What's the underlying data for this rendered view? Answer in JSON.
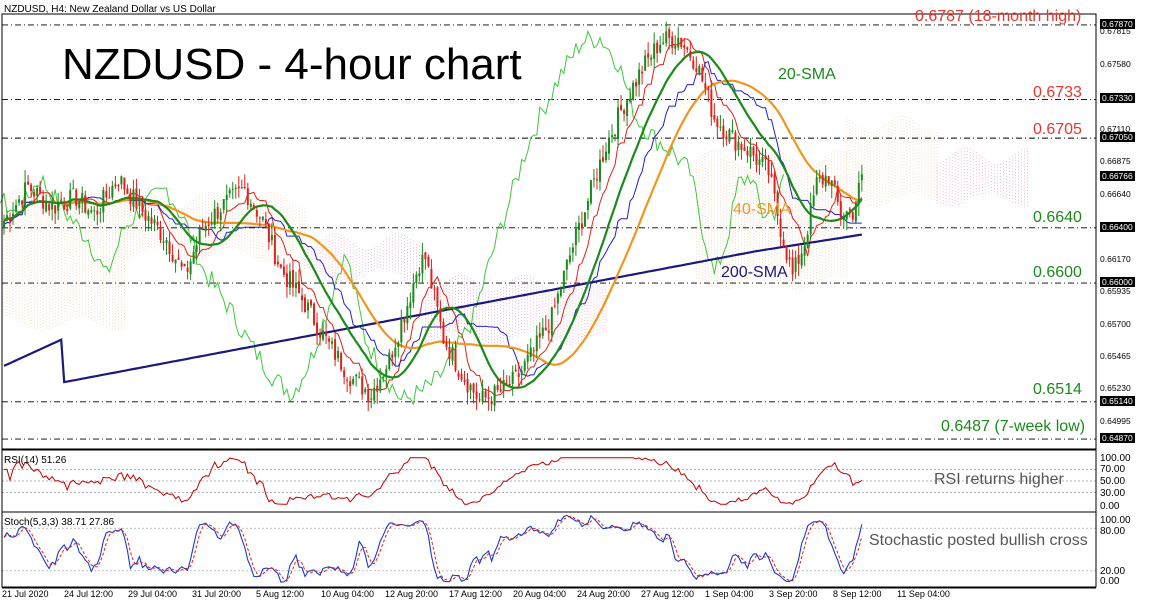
{
  "header": {
    "symbol_line": "NZDUSD, H4: New Zealand Dollar vs US Dollar",
    "title": "NZDUSD - 4-hour chart"
  },
  "colors": {
    "bull_candle": "#1a8a1a",
    "bear_candle": "#e0201a",
    "sma20": "#1a8a1a",
    "sma40": "#f0961e",
    "sma200": "#1a1a7a",
    "tenkan": "#e0201a",
    "kijun": "#2020c8",
    "chikou": "#3cc83c",
    "cloud_bull": "#f5c9a0",
    "cloud_bear": "#e898c8",
    "level_text_red": "#e8362c",
    "level_text_green": "#1b8a1b"
  },
  "levels": [
    {
      "value": 0.6787,
      "label": "0.6787 (18-month high)",
      "color": "red"
    },
    {
      "value": 0.6733,
      "label": "0.6733",
      "color": "red"
    },
    {
      "value": 0.6705,
      "label": "0.6705",
      "color": "red"
    },
    {
      "value": 0.664,
      "label": "0.6640",
      "color": "green"
    },
    {
      "value": 0.66,
      "label": "0.6600",
      "color": "green"
    },
    {
      "value": 0.6514,
      "label": "0.6514",
      "color": "green"
    },
    {
      "value": 0.6487,
      "label": "0.6487 (7-week low)",
      "color": "green"
    }
  ],
  "sma_labels": {
    "sma20": "20-SMA",
    "sma40": "40-SMA",
    "sma200": "200-SMA"
  },
  "price_axis": {
    "ticks": [
      "0.67870",
      "0.67815",
      "0.67580",
      "0.67330",
      "0.67110",
      "0.67050",
      "0.66875",
      "0.66766",
      "0.66640",
      "0.66400",
      "0.66170",
      "0.66000",
      "0.65935",
      "0.65700",
      "0.65465",
      "0.65230",
      "0.65140",
      "0.64995",
      "0.64870"
    ],
    "highlighted": [
      "0.67870",
      "0.67330",
      "0.67050",
      "0.66766",
      "0.66400",
      "0.66000",
      "0.65140",
      "0.64870"
    ]
  },
  "rsi": {
    "label": "RSI(14) 51.26",
    "ticks": [
      "100.00",
      "70.00",
      "50.00",
      "30.00",
      "0.00"
    ],
    "note": "RSI returns higher"
  },
  "stoch": {
    "label": "Stoch(5,3,3) 38.71 27.86",
    "ticks": [
      "100.00",
      "80.00",
      "20.00",
      "0.00"
    ],
    "note": "Stochastic posted bullish cross"
  },
  "x_axis": [
    "21 Jul 2020",
    "24 Jul 12:00",
    "29 Jul 04:00",
    "31 Jul 20:00",
    "5 Aug 12:00",
    "10 Aug 04:00",
    "12 Aug 20:00",
    "17 Aug 12:00",
    "20 Aug 04:00",
    "24 Aug 20:00",
    "27 Aug 12:00",
    "1 Sep 04:00",
    "3 Sep 20:00",
    "8 Sep 12:00",
    "11 Sep 04:00"
  ],
  "chart_data": {
    "type": "candlestick",
    "price_range": [
      0.6482,
      0.6792
    ],
    "anchors": [
      [
        0,
        0.6645
      ],
      [
        8,
        0.667
      ],
      [
        16,
        0.6655
      ],
      [
        24,
        0.6662
      ],
      [
        30,
        0.665
      ],
      [
        38,
        0.6676
      ],
      [
        46,
        0.6652
      ],
      [
        54,
        0.6632
      ],
      [
        60,
        0.6605
      ],
      [
        66,
        0.664
      ],
      [
        72,
        0.6655
      ],
      [
        80,
        0.6668
      ],
      [
        86,
        0.6645
      ],
      [
        92,
        0.661
      ],
      [
        100,
        0.6585
      ],
      [
        108,
        0.6555
      ],
      [
        116,
        0.653
      ],
      [
        122,
        0.652
      ],
      [
        128,
        0.6545
      ],
      [
        134,
        0.6585
      ],
      [
        138,
        0.6615
      ],
      [
        140,
        0.6618
      ],
      [
        146,
        0.656
      ],
      [
        152,
        0.6535
      ],
      [
        158,
        0.6515
      ],
      [
        164,
        0.652
      ],
      [
        170,
        0.653
      ],
      [
        176,
        0.655
      ],
      [
        182,
        0.6575
      ],
      [
        188,
        0.662
      ],
      [
        194,
        0.666
      ],
      [
        200,
        0.67
      ],
      [
        206,
        0.673
      ],
      [
        212,
        0.6755
      ],
      [
        218,
        0.6775
      ],
      [
        224,
        0.6778
      ],
      [
        230,
        0.676
      ],
      [
        236,
        0.672
      ],
      [
        242,
        0.6705
      ],
      [
        248,
        0.6695
      ],
      [
        254,
        0.668
      ],
      [
        258,
        0.664
      ],
      [
        262,
        0.6605
      ],
      [
        266,
        0.663
      ],
      [
        270,
        0.6672
      ],
      [
        274,
        0.6678
      ],
      [
        278,
        0.665
      ],
      [
        282,
        0.6652
      ],
      [
        285,
        0.6675
      ]
    ],
    "extremes": {
      "high_18_month": 0.6787,
      "low_7_week": 0.6487
    }
  }
}
